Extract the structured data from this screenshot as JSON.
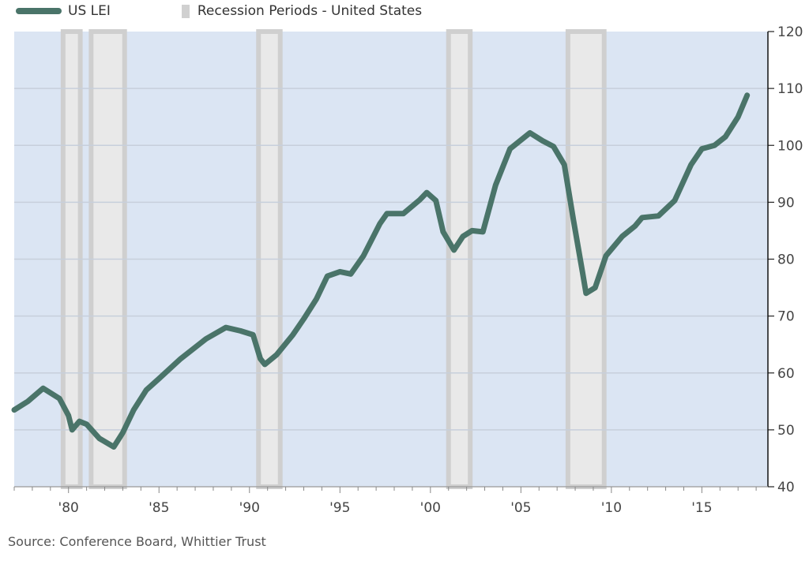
{
  "chart_data": {
    "type": "line",
    "title": "",
    "legend": [
      {
        "label": "US LEI",
        "kind": "line"
      },
      {
        "label": "Recession Periods - United States",
        "kind": "band"
      }
    ],
    "legend_placement": "top-left",
    "xlim": [
      1977.0,
      2018.65
    ],
    "ylim": [
      40,
      120
    ],
    "y_axis_side": "right",
    "grid": true,
    "x_ticks": [
      {
        "value": 1980,
        "label": "'80"
      },
      {
        "value": 1985,
        "label": "'85"
      },
      {
        "value": 1990,
        "label": "'90"
      },
      {
        "value": 1995,
        "label": "'95"
      },
      {
        "value": 2000,
        "label": "'00"
      },
      {
        "value": 2005,
        "label": "'05"
      },
      {
        "value": 2010,
        "label": "'10"
      },
      {
        "value": 2015,
        "label": "'15"
      }
    ],
    "y_ticks": [
      40,
      50,
      60,
      70,
      80,
      90,
      100,
      110,
      120
    ],
    "recessions": [
      [
        1979.7,
        1980.65
      ],
      [
        1981.25,
        1983.1
      ],
      [
        1990.5,
        1991.7
      ],
      [
        2001.0,
        2002.2
      ],
      [
        2007.6,
        2009.6
      ]
    ],
    "series": [
      {
        "name": "US LEI",
        "color": "#4a7469",
        "points": [
          [
            1977.0,
            53.5
          ],
          [
            1977.75,
            55
          ],
          [
            1978.6,
            57.3
          ],
          [
            1979.5,
            55.5
          ],
          [
            1980.0,
            52.5
          ],
          [
            1980.2,
            50
          ],
          [
            1980.6,
            51.5
          ],
          [
            1981.0,
            51
          ],
          [
            1981.7,
            48.5
          ],
          [
            1982.5,
            47
          ],
          [
            1983.0,
            49.5
          ],
          [
            1983.6,
            53.5
          ],
          [
            1984.3,
            57
          ],
          [
            1985.0,
            59
          ],
          [
            1986.2,
            62.5
          ],
          [
            1987.6,
            66
          ],
          [
            1988.7,
            68
          ],
          [
            1989.5,
            67.4
          ],
          [
            1990.2,
            66.7
          ],
          [
            1990.6,
            62.5
          ],
          [
            1990.85,
            61.5
          ],
          [
            1991.5,
            63.2
          ],
          [
            1992.4,
            66.7
          ],
          [
            1993.0,
            69.5
          ],
          [
            1993.7,
            73
          ],
          [
            1994.3,
            77
          ],
          [
            1995.0,
            77.8
          ],
          [
            1995.6,
            77.4
          ],
          [
            1996.3,
            80.6
          ],
          [
            1997.2,
            86.2
          ],
          [
            1997.6,
            88
          ],
          [
            1998.5,
            88
          ],
          [
            1999.4,
            90.4
          ],
          [
            1999.8,
            91.7
          ],
          [
            2000.3,
            90.3
          ],
          [
            2000.7,
            84.8
          ],
          [
            2001.3,
            81.6
          ],
          [
            2001.8,
            84
          ],
          [
            2002.3,
            85
          ],
          [
            2002.9,
            84.8
          ],
          [
            2003.6,
            93
          ],
          [
            2004.4,
            99.4
          ],
          [
            2005.5,
            102.2
          ],
          [
            2006.2,
            100.8
          ],
          [
            2006.8,
            99.8
          ],
          [
            2007.4,
            96.6
          ],
          [
            2007.9,
            86.9
          ],
          [
            2008.4,
            77.8
          ],
          [
            2008.6,
            74
          ],
          [
            2009.1,
            75
          ],
          [
            2009.7,
            80.6
          ],
          [
            2010.6,
            84
          ],
          [
            2011.3,
            85.8
          ],
          [
            2011.7,
            87.3
          ],
          [
            2012.6,
            87.6
          ],
          [
            2013.5,
            90.3
          ],
          [
            2014.4,
            96.6
          ],
          [
            2015.0,
            99.4
          ],
          [
            2015.7,
            100
          ],
          [
            2016.3,
            101.5
          ],
          [
            2017.0,
            105
          ],
          [
            2017.5,
            108.8
          ]
        ]
      }
    ],
    "colors": {
      "plot_bg": "#dbe5f3",
      "band_edge": "#cfcfcf",
      "band_fill": "#e9e9e9",
      "grid": "#c7cfdb"
    }
  },
  "source": "Source: Conference Board, Whittier Trust"
}
